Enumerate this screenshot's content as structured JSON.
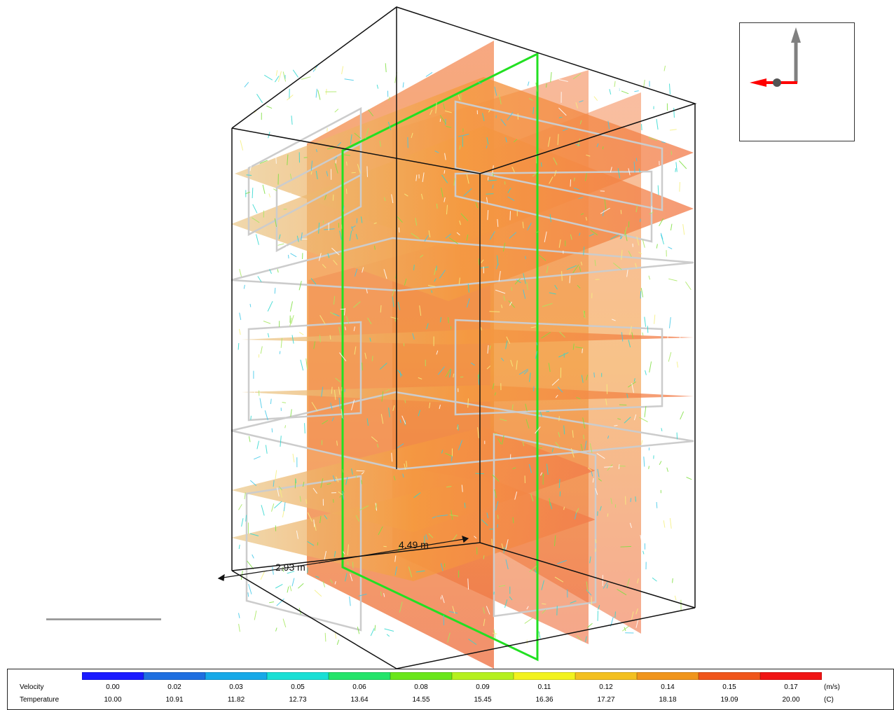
{
  "viewport": {
    "dimensions": [
      "4.49 m",
      "2.93 m"
    ]
  },
  "legend": {
    "velocity": {
      "label": "Velocity",
      "unit": "(m/s)",
      "values": [
        "0.00",
        "0.02",
        "0.03",
        "0.05",
        "0.06",
        "0.08",
        "0.09",
        "0.11",
        "0.12",
        "0.14",
        "0.15",
        "0.17"
      ]
    },
    "temperature": {
      "label": "Temperature",
      "unit": "(C)",
      "values": [
        "10.00",
        "10.91",
        "11.82",
        "12.73",
        "13.64",
        "14.55",
        "15.45",
        "16.36",
        "17.27",
        "18.18",
        "19.09",
        "20.00"
      ]
    },
    "colors": [
      "#1a1aff",
      "#1f6fe0",
      "#17a9e8",
      "#19dfd5",
      "#24e46a",
      "#6ae61a",
      "#b5f01e",
      "#f2f21e",
      "#f3c020",
      "#f0951c",
      "#f0561b",
      "#f01414"
    ]
  },
  "triad": {
    "colors": {
      "up": "#808080",
      "left": "#ff0000",
      "center": "#555555"
    }
  }
}
